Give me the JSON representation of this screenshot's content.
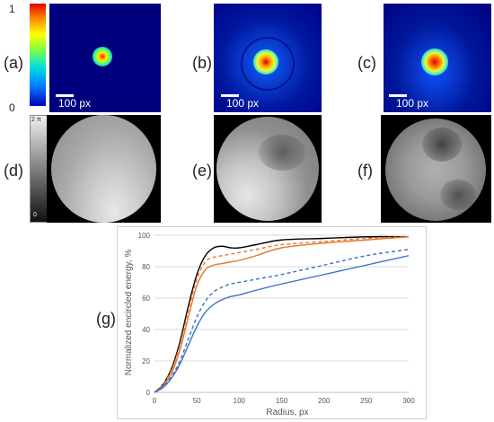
{
  "panels": {
    "a": "(a)",
    "b": "(b)",
    "c": "(c)",
    "d": "(d)",
    "e": "(e)",
    "f": "(f)",
    "g": "(g)"
  },
  "scale_bar_label": "100 px",
  "intensity_colorbar": {
    "max": "1",
    "min": "0"
  },
  "phase_colorbar": {
    "max": "2 π",
    "min": "0"
  },
  "colors": {
    "black_series": "#000000",
    "orange": "#e8772a",
    "blue": "#3a70c4",
    "psf_bg": "#000080"
  },
  "chart_data": {
    "type": "line",
    "xlabel": "Radius, px",
    "ylabel": "Normalized encircled energy, %",
    "xlim": [
      0,
      300
    ],
    "ylim": [
      0,
      100
    ],
    "xticks": [
      "0",
      "50",
      "100",
      "150",
      "200",
      "250",
      "300"
    ],
    "yticks": [
      "0",
      "20",
      "40",
      "60",
      "80",
      "100"
    ],
    "grid": "horizontal",
    "series": [
      {
        "color": "#000000",
        "dash": "solid",
        "x": [
          0,
          10,
          20,
          30,
          40,
          50,
          60,
          70,
          80,
          90,
          100,
          120,
          150,
          200,
          250,
          300
        ],
        "y": [
          0,
          5,
          15,
          32,
          55,
          75,
          87,
          92,
          93,
          92,
          92,
          94,
          97,
          98,
          99,
          99
        ]
      },
      {
        "color": "#e8772a",
        "dash": "dashed",
        "x": [
          0,
          10,
          20,
          30,
          40,
          50,
          60,
          70,
          80,
          90,
          100,
          120,
          150,
          200,
          250,
          300
        ],
        "y": [
          0,
          5,
          14,
          30,
          52,
          72,
          83,
          86,
          87,
          88,
          89,
          91,
          94,
          96,
          98,
          99
        ]
      },
      {
        "color": "#e8772a",
        "dash": "solid",
        "x": [
          0,
          10,
          20,
          30,
          40,
          50,
          60,
          70,
          80,
          90,
          100,
          120,
          150,
          200,
          250,
          300
        ],
        "y": [
          0,
          4,
          12,
          27,
          48,
          68,
          78,
          81,
          82,
          83,
          84,
          87,
          92,
          95,
          97,
          99
        ]
      },
      {
        "color": "#3a70c4",
        "dash": "dashed",
        "x": [
          0,
          10,
          20,
          30,
          40,
          50,
          60,
          70,
          80,
          90,
          100,
          120,
          150,
          200,
          250,
          300
        ],
        "y": [
          0,
          4,
          10,
          20,
          34,
          48,
          58,
          64,
          67,
          69,
          70,
          72,
          75,
          81,
          87,
          91
        ]
      },
      {
        "color": "#3a70c4",
        "dash": "solid",
        "x": [
          0,
          10,
          20,
          30,
          40,
          50,
          60,
          70,
          80,
          90,
          100,
          120,
          150,
          200,
          250,
          300
        ],
        "y": [
          0,
          3,
          9,
          18,
          30,
          42,
          51,
          56,
          59,
          61,
          62,
          65,
          69,
          75,
          81,
          87
        ]
      }
    ]
  }
}
